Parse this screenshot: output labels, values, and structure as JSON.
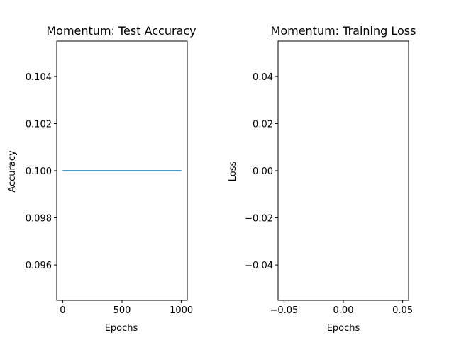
{
  "chart_data": [
    {
      "type": "line",
      "title": "Momentum: Test Accuracy",
      "xlabel": "Epochs",
      "ylabel": "Accuracy",
      "xlim": [
        -50,
        1050
      ],
      "ylim": [
        0.0945,
        0.1055
      ],
      "xticks": [
        0,
        500,
        1000
      ],
      "xtick_labels": [
        "0",
        "500",
        "1000"
      ],
      "yticks": [
        0.096,
        0.098,
        0.1,
        0.102,
        0.104
      ],
      "ytick_labels": [
        "0.096",
        "0.098",
        "0.100",
        "0.102",
        "0.104"
      ],
      "grid": false,
      "series": [
        {
          "color": "#1f77b4",
          "x": [
            0,
            1000
          ],
          "y": [
            0.1,
            0.1
          ]
        }
      ]
    },
    {
      "type": "line",
      "title": "Momentum: Training Loss",
      "xlabel": "Epochs",
      "ylabel": "Loss",
      "xlim": [
        -0.055,
        0.055
      ],
      "ylim": [
        -0.055,
        0.055
      ],
      "xticks": [
        -0.05,
        0.0,
        0.05
      ],
      "xtick_labels": [
        "−0.05",
        "0.00",
        "0.05"
      ],
      "yticks": [
        -0.04,
        -0.02,
        0.0,
        0.02,
        0.04
      ],
      "ytick_labels": [
        "−0.04",
        "−0.02",
        "0.00",
        "0.02",
        "0.04"
      ],
      "grid": false,
      "series": []
    }
  ]
}
